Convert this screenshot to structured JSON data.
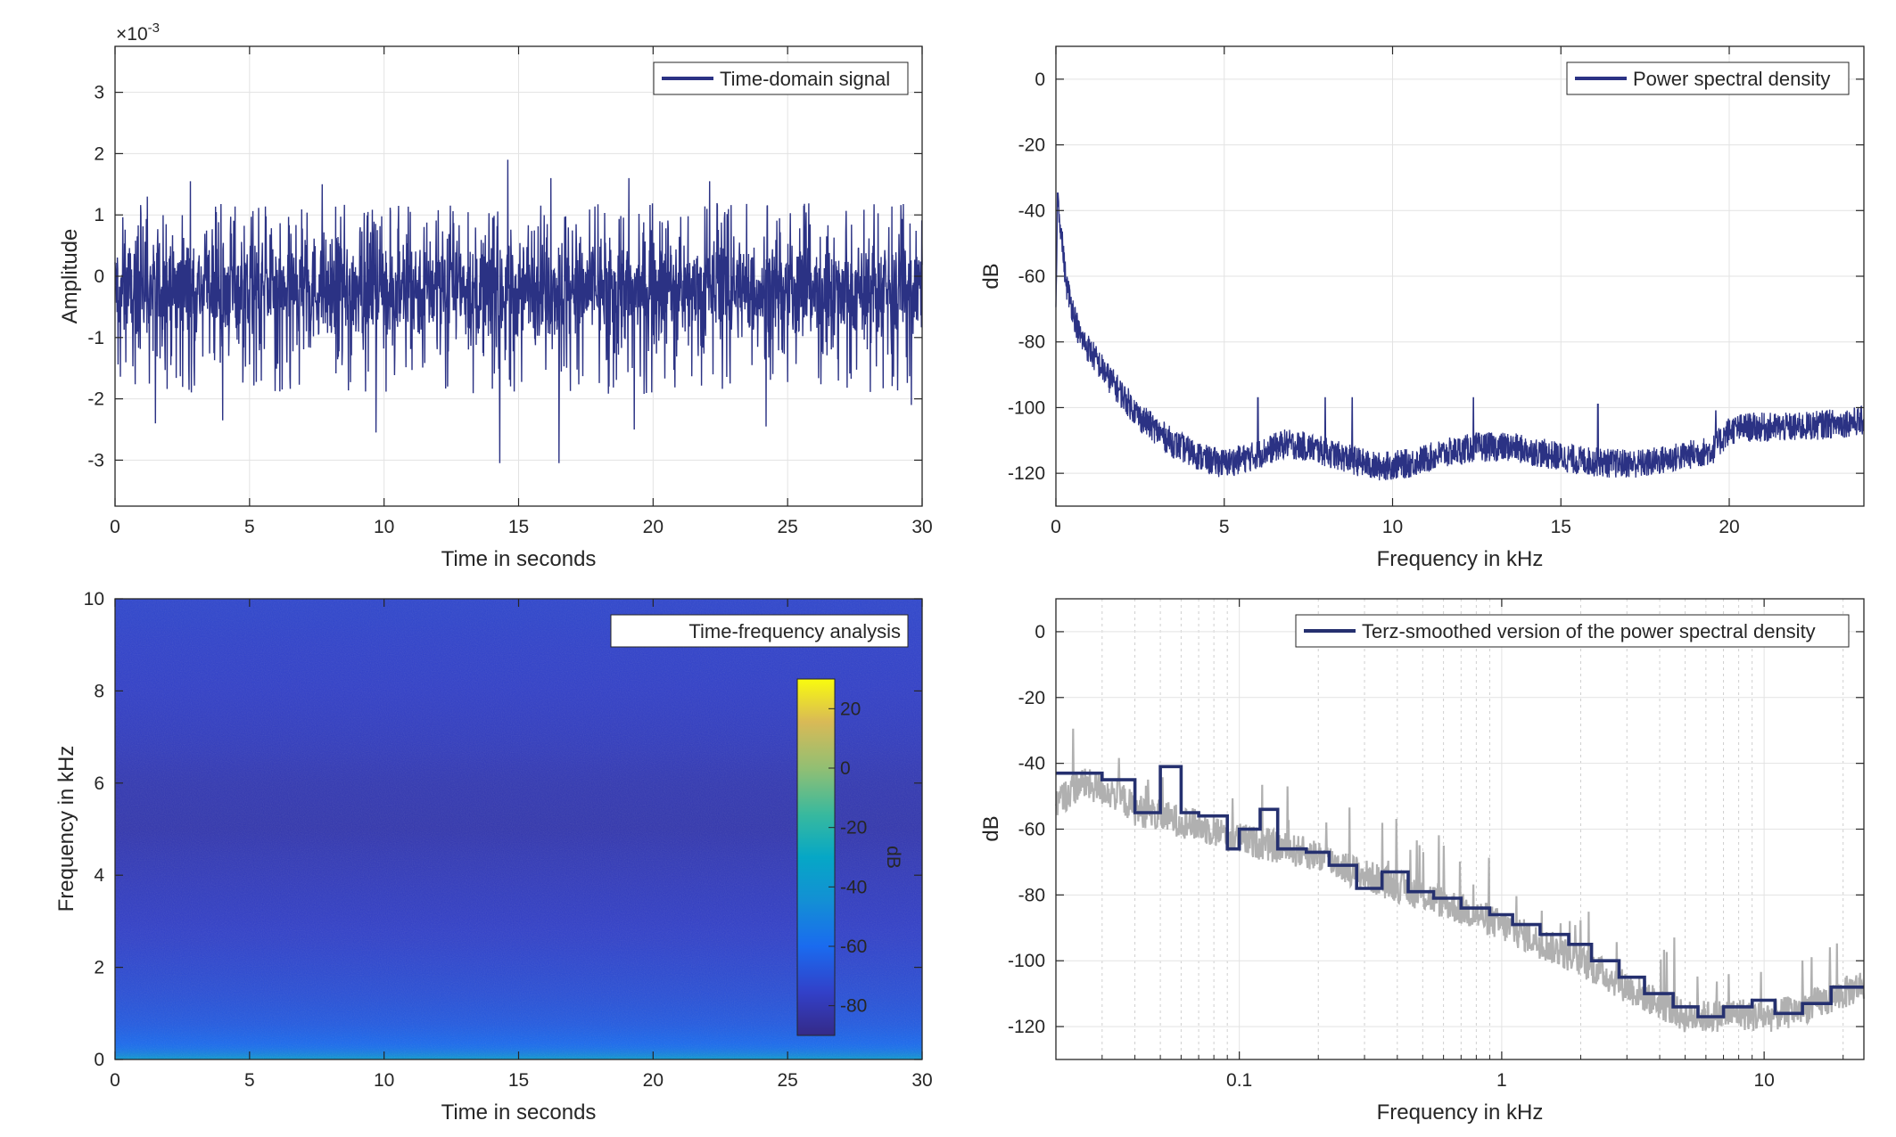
{
  "colors": {
    "signal": "#2b3284",
    "smoothed": "#25306f",
    "raw_psd": "#b0b0b0",
    "grid": "#e3e3e3",
    "axis": "#262626"
  },
  "chart_data": [
    {
      "type": "line",
      "legend": [
        "Time-domain signal"
      ],
      "legend_placement": "top-right",
      "xlabel": "Time in seconds",
      "ylabel": "Amplitude",
      "exponent_label": "×10",
      "exponent_power": "-3",
      "xlim": [
        0,
        30
      ],
      "ylim": [
        -3.75,
        3.75
      ],
      "xticks": [
        0,
        5,
        10,
        15,
        20,
        25,
        30
      ],
      "yticks": [
        -3,
        -2,
        -1,
        0,
        1,
        2,
        3
      ],
      "grid": true,
      "series": [
        {
          "envelope": {
            "typical_upper": 1.0,
            "typical_lower": -1.6,
            "peaks": [
              {
                "x": 1.2,
                "y": 1.3
              },
              {
                "x": 2.8,
                "y": 1.55
              },
              {
                "x": 7.7,
                "y": 1.5
              },
              {
                "x": 14.6,
                "y": 1.9
              },
              {
                "x": 16.2,
                "y": 1.6
              },
              {
                "x": 19.1,
                "y": 1.6
              },
              {
                "x": 22.1,
                "y": 1.55
              },
              {
                "x": 1.5,
                "y": -2.4
              },
              {
                "x": 4.0,
                "y": -2.35
              },
              {
                "x": 9.7,
                "y": -2.55
              },
              {
                "x": 14.3,
                "y": -3.05
              },
              {
                "x": 16.5,
                "y": -3.05
              },
              {
                "x": 19.3,
                "y": -2.5
              },
              {
                "x": 24.2,
                "y": -2.45
              },
              {
                "x": 29.6,
                "y": -2.1
              }
            ]
          }
        }
      ]
    },
    {
      "type": "line",
      "legend": [
        "Power spectral density"
      ],
      "legend_placement": "top-right",
      "xlabel": "Frequency in kHz",
      "ylabel": "dB",
      "xlim": [
        0,
        24
      ],
      "ylim": [
        -130,
        10
      ],
      "xticks": [
        0,
        5,
        10,
        15,
        20
      ],
      "yticks": [
        0,
        -20,
        -40,
        -60,
        -80,
        -100,
        -120
      ],
      "grid": true,
      "series": [
        {
          "x": [
            0,
            0.05,
            0.3,
            0.7,
            1.5,
            2.5,
            3.5,
            4.5,
            5.0,
            5.8,
            6.8,
            7.5,
            8.5,
            9.5,
            10.5,
            11.5,
            12.5,
            13.5,
            14.5,
            15.5,
            16.5,
            17.5,
            18.5,
            19.5,
            20.0,
            20.5,
            22,
            24
          ],
          "y": [
            -70,
            -35,
            -62,
            -78,
            -90,
            -103,
            -111,
            -116,
            -117,
            -115,
            -111,
            -112,
            -115,
            -118,
            -117,
            -114,
            -112,
            -112,
            -114,
            -116,
            -117,
            -117,
            -115,
            -113,
            -107,
            -106,
            -106,
            -104
          ],
          "spikes": [
            {
              "x": 6.0,
              "y": -97
            },
            {
              "x": 8.0,
              "y": -97
            },
            {
              "x": 8.8,
              "y": -97
            },
            {
              "x": 12.4,
              "y": -97
            },
            {
              "x": 16.1,
              "y": -99
            },
            {
              "x": 19.6,
              "y": -101
            },
            {
              "x": 22.9,
              "y": -101
            }
          ]
        }
      ]
    },
    {
      "type": "heatmap",
      "legend": [
        "Time-frequency analysis"
      ],
      "legend_placement": "top-right",
      "xlabel": "Time in seconds",
      "ylabel": "Frequency in kHz",
      "colorbar_label": "dB",
      "xlim": [
        0,
        30
      ],
      "ylim": [
        0,
        10
      ],
      "xticks": [
        0,
        5,
        10,
        15,
        20,
        25,
        30
      ],
      "yticks": [
        0,
        2,
        4,
        6,
        8,
        10
      ],
      "colorbar_ticks": [
        20,
        0,
        -20,
        -40,
        -60,
        -80
      ],
      "clim": [
        -90,
        30
      ],
      "profile_db": {
        "freq_khz": [
          0,
          0.1,
          0.3,
          0.8,
          1.5,
          2.5,
          4,
          5,
          6,
          7,
          8,
          10
        ],
        "level_db": [
          -38,
          -50,
          -60,
          -66,
          -70,
          -74,
          -78,
          -81,
          -80,
          -77,
          -75,
          -73
        ]
      }
    },
    {
      "type": "line",
      "legend": [
        "Terz-smoothed version of the power spectral density"
      ],
      "legend_placement": "top-right",
      "xlabel": "Frequency in kHz",
      "ylabel": "dB",
      "xscale": "log",
      "xlim": [
        0.02,
        24
      ],
      "ylim": [
        -130,
        10
      ],
      "xticks": [
        0.1,
        1,
        10
      ],
      "xtick_labels": [
        "0.1",
        "1",
        "10"
      ],
      "yticks": [
        0,
        -20,
        -40,
        -60,
        -80,
        -100,
        -120
      ],
      "grid": true,
      "series": [
        {
          "name": "smoothed",
          "steps": [
            [
              0.02,
              -43
            ],
            [
              0.03,
              -45
            ],
            [
              0.04,
              -55
            ],
            [
              0.05,
              -41
            ],
            [
              0.06,
              -55
            ],
            [
              0.07,
              -56
            ],
            [
              0.09,
              -66
            ],
            [
              0.1,
              -60
            ],
            [
              0.12,
              -54
            ],
            [
              0.14,
              -66
            ],
            [
              0.18,
              -67
            ],
            [
              0.22,
              -71
            ],
            [
              0.28,
              -78
            ],
            [
              0.35,
              -73
            ],
            [
              0.44,
              -79
            ],
            [
              0.55,
              -81
            ],
            [
              0.7,
              -84
            ],
            [
              0.9,
              -86
            ],
            [
              1.1,
              -89
            ],
            [
              1.4,
              -92
            ],
            [
              1.8,
              -95
            ],
            [
              2.2,
              -100
            ],
            [
              2.8,
              -105
            ],
            [
              3.5,
              -110
            ],
            [
              4.5,
              -114
            ],
            [
              5.6,
              -117
            ],
            [
              7.0,
              -114
            ],
            [
              9.0,
              -112
            ],
            [
              11.0,
              -116
            ],
            [
              14.0,
              -113
            ],
            [
              18.0,
              -108
            ],
            [
              24,
              -108
            ]
          ]
        },
        {
          "name": "raw",
          "x": [
            0.02,
            0.025,
            0.03,
            0.035,
            0.04,
            0.05,
            0.07,
            0.1,
            0.15,
            0.2,
            0.3,
            0.5,
            0.8,
            1.2,
            2,
            3,
            4,
            5,
            6,
            8,
            10,
            12,
            16,
            20,
            24
          ],
          "y": [
            -52,
            -46,
            -48,
            -50,
            -54,
            -56,
            -59,
            -63,
            -66,
            -68,
            -74,
            -80,
            -86,
            -92,
            -100,
            -108,
            -113,
            -117,
            -117,
            -116,
            -117,
            -116,
            -113,
            -110,
            -107
          ]
        }
      ]
    }
  ]
}
